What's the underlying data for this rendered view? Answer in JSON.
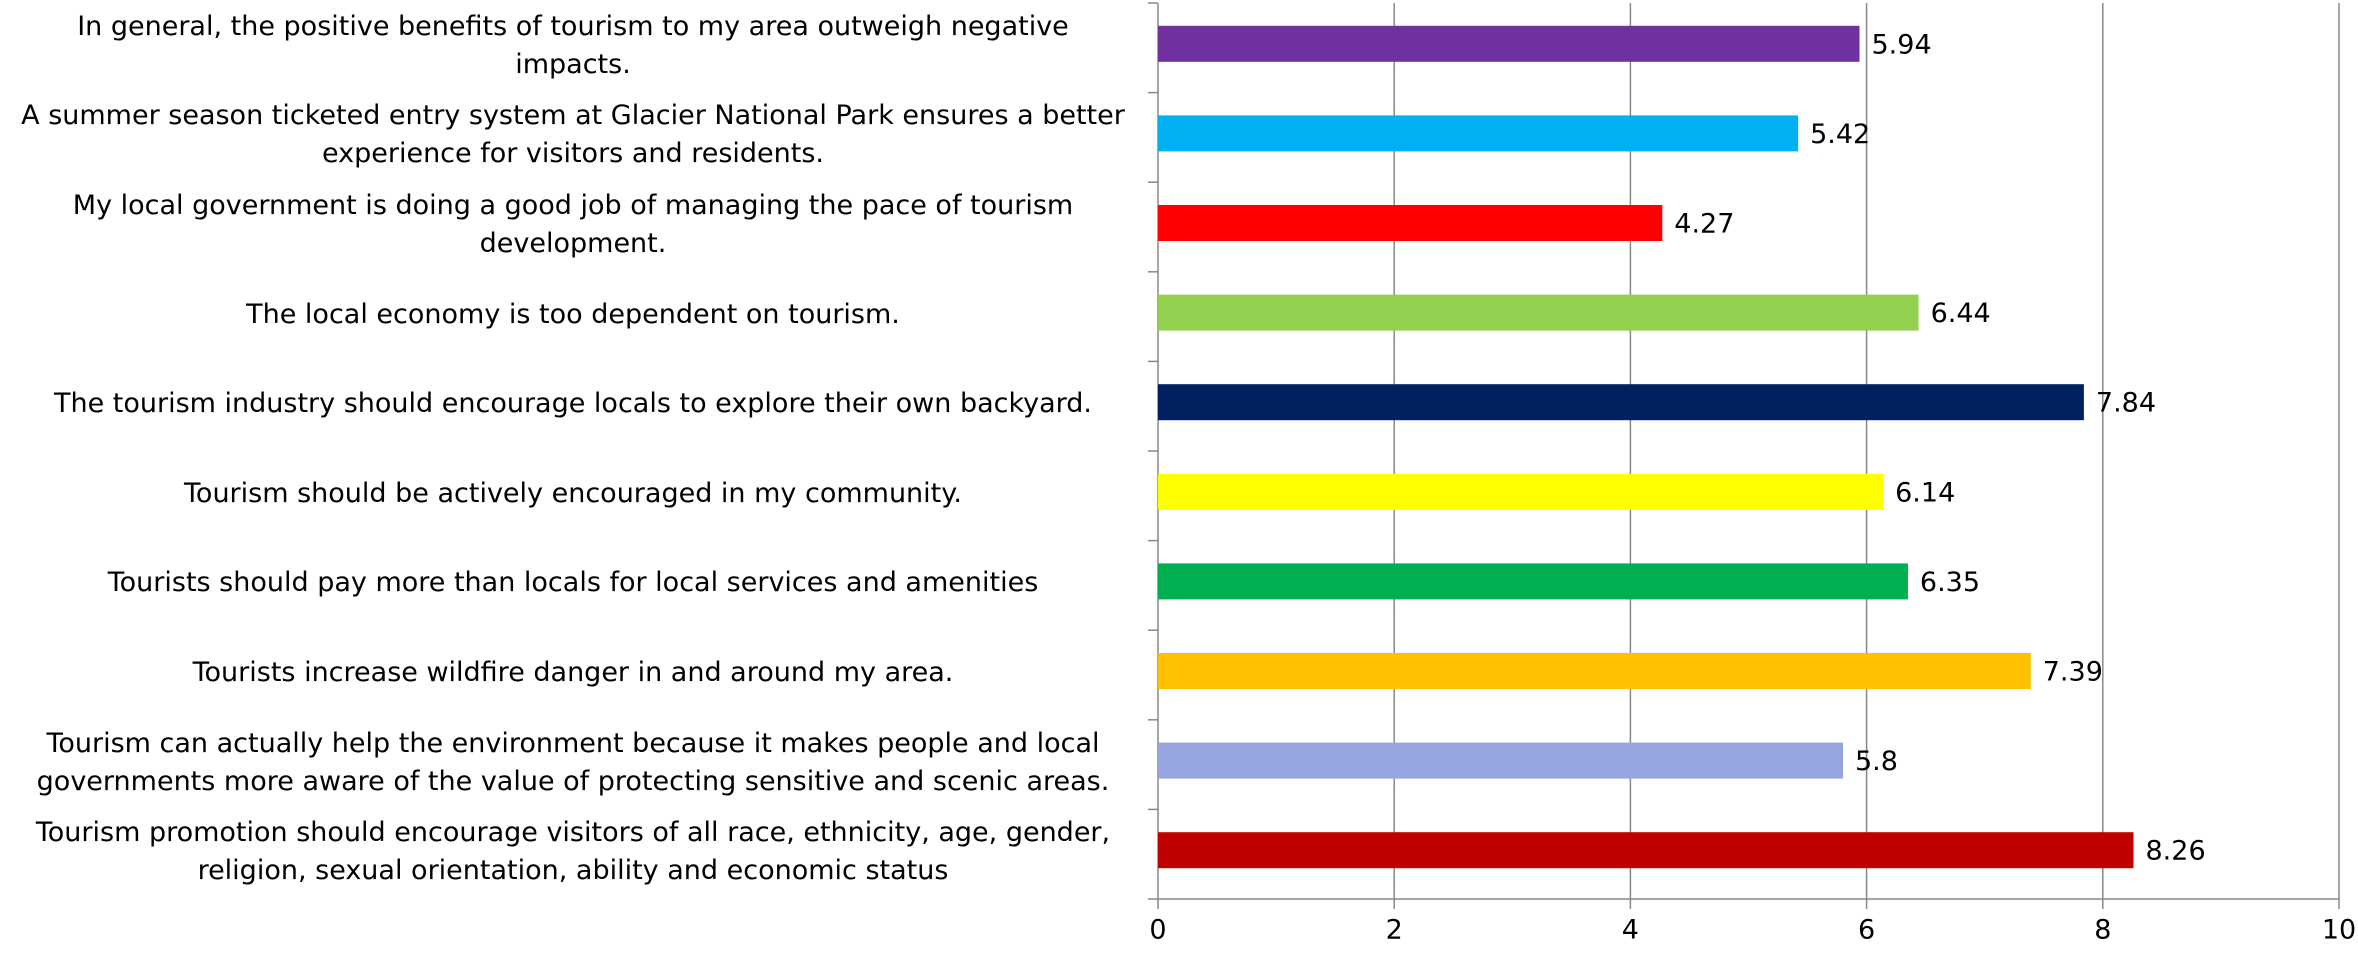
{
  "chart_data": {
    "type": "barh",
    "categories": [
      "In general, the positive benefits of tourism to my area outweigh negative impacts.",
      "A summer season ticketed entry system at Glacier National Park ensures a better experience for visitors and residents.",
      "My local government is doing a good job of managing the pace of tourism development.",
      "The local economy is too dependent on tourism.",
      "The tourism industry should encourage locals to explore their own backyard.",
      "Tourism should be actively encouraged in my community.",
      "Tourists should pay more than locals for local services and amenities",
      "Tourists increase wildfire danger in and around my area.",
      "Tourism can actually help the environment because it makes people and local governments more aware of the value of protecting sensitive and scenic areas.",
      "Tourism promotion should encourage visitors of all race, ethnicity, age, gender, religion, sexual orientation, ability and economic status"
    ],
    "values": [
      5.94,
      5.42,
      4.27,
      6.44,
      7.84,
      6.14,
      6.35,
      7.39,
      5.8,
      8.26
    ],
    "colors": [
      "#7030a0",
      "#00b0f0",
      "#ff0000",
      "#92d050",
      "#002060",
      "#ffff00",
      "#00b050",
      "#ffc000",
      "#96a5e0",
      "#c00000"
    ],
    "xlim": [
      0,
      10
    ],
    "xticks": [
      0,
      2,
      4,
      6,
      8,
      10
    ],
    "grid": true
  }
}
